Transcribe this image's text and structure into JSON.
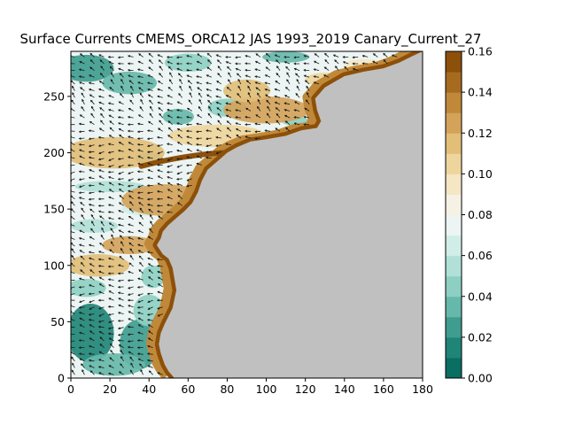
{
  "chart_data": {
    "type": "heatmap",
    "title": "Surface Currents CMEMS_ORCA12 JAS 1993_2019 Canary_Current_27",
    "xlabel": "",
    "ylabel": "",
    "xlim": [
      0,
      180
    ],
    "ylim": [
      0,
      290
    ],
    "x_ticks": [
      "0",
      "20",
      "40",
      "60",
      "80",
      "100",
      "120",
      "140",
      "160",
      "180"
    ],
    "y_ticks": [
      "0",
      "50",
      "100",
      "150",
      "200",
      "250"
    ],
    "colorbar": {
      "range": [
        0.0,
        0.16
      ],
      "ticks": [
        "0.00",
        "0.02",
        "0.04",
        "0.06",
        "0.08",
        "0.10",
        "0.12",
        "0.14",
        "0.16"
      ],
      "levels": 16,
      "colormap": "BrBG_r",
      "colors": [
        "#0b6e62",
        "#1f8577",
        "#3e9d8f",
        "#66b8aa",
        "#8dd0c3",
        "#b1e0d8",
        "#d1ede8",
        "#ecf5f3",
        "#f5f1e4",
        "#f5e6c4",
        "#eed59c",
        "#e2be78",
        "#d4a35a",
        "#c08939",
        "#a66b1f",
        "#8d500a"
      ]
    },
    "land_color": "#c0c0c0",
    "coastline": [
      [
        180,
        290
      ],
      [
        175,
        286
      ],
      [
        168,
        280
      ],
      [
        160,
        275
      ],
      [
        150,
        272
      ],
      [
        140,
        268
      ],
      [
        130,
        258
      ],
      [
        125,
        248
      ],
      [
        126,
        238
      ],
      [
        128,
        228
      ],
      [
        126,
        222
      ],
      [
        118,
        220
      ],
      [
        110,
        215
      ],
      [
        100,
        212
      ],
      [
        92,
        210
      ],
      [
        85,
        205
      ],
      [
        80,
        200
      ],
      [
        76,
        194
      ],
      [
        70,
        185
      ],
      [
        67,
        175
      ],
      [
        65,
        165
      ],
      [
        62,
        155
      ],
      [
        58,
        148
      ],
      [
        54,
        142
      ],
      [
        50,
        136
      ],
      [
        47,
        130
      ],
      [
        46,
        124
      ],
      [
        44,
        118
      ],
      [
        47,
        110
      ],
      [
        50,
        106
      ],
      [
        52,
        98
      ],
      [
        53,
        88
      ],
      [
        54,
        78
      ],
      [
        53,
        70
      ],
      [
        52,
        62
      ],
      [
        50,
        55
      ],
      [
        48,
        48
      ],
      [
        46,
        40
      ],
      [
        45,
        30
      ],
      [
        46,
        22
      ],
      [
        48,
        12
      ],
      [
        50,
        6
      ],
      [
        53,
        0
      ],
      [
        180,
        0
      ]
    ],
    "fields": [
      {
        "level": 0.015,
        "x": 10,
        "y": 40,
        "rx": 12,
        "ry": 26
      },
      {
        "level": 0.02,
        "x": 35,
        "y": 30,
        "rx": 10,
        "ry": 22
      },
      {
        "level": 0.03,
        "x": 22,
        "y": 12,
        "rx": 16,
        "ry": 10
      },
      {
        "level": 0.04,
        "x": 40,
        "y": 60,
        "rx": 8,
        "ry": 14
      },
      {
        "level": 0.025,
        "x": 8,
        "y": 275,
        "rx": 14,
        "ry": 12
      },
      {
        "level": 0.03,
        "x": 30,
        "y": 262,
        "rx": 14,
        "ry": 10
      },
      {
        "level": 0.04,
        "x": 60,
        "y": 280,
        "rx": 12,
        "ry": 8
      },
      {
        "level": 0.035,
        "x": 110,
        "y": 285,
        "rx": 12,
        "ry": 5
      },
      {
        "level": 0.04,
        "x": 80,
        "y": 240,
        "rx": 10,
        "ry": 8
      },
      {
        "level": 0.03,
        "x": 55,
        "y": 232,
        "rx": 8,
        "ry": 7
      },
      {
        "level": 0.05,
        "x": 12,
        "y": 135,
        "rx": 12,
        "ry": 6
      },
      {
        "level": 0.06,
        "x": 40,
        "y": 150,
        "rx": 14,
        "ry": 6
      },
      {
        "level": 0.05,
        "x": 20,
        "y": 170,
        "rx": 18,
        "ry": 5
      },
      {
        "level": 0.045,
        "x": 42,
        "y": 90,
        "rx": 6,
        "ry": 10
      },
      {
        "level": 0.035,
        "x": 40,
        "y": 195,
        "rx": 7,
        "ry": 5
      },
      {
        "level": 0.05,
        "x": 75,
        "y": 180,
        "rx": 8,
        "ry": 4
      },
      {
        "level": 0.04,
        "x": 115,
        "y": 228,
        "rx": 7,
        "ry": 4
      },
      {
        "level": 0.045,
        "x": 8,
        "y": 80,
        "rx": 10,
        "ry": 8
      },
      {
        "level": 0.11,
        "x": 22,
        "y": 200,
        "rx": 26,
        "ry": 14
      },
      {
        "level": 0.12,
        "x": 48,
        "y": 158,
        "rx": 22,
        "ry": 14
      },
      {
        "level": 0.105,
        "x": 75,
        "y": 215,
        "rx": 25,
        "ry": 10
      },
      {
        "level": 0.12,
        "x": 100,
        "y": 238,
        "rx": 22,
        "ry": 12
      },
      {
        "level": 0.115,
        "x": 14,
        "y": 100,
        "rx": 16,
        "ry": 10
      },
      {
        "level": 0.12,
        "x": 30,
        "y": 118,
        "rx": 14,
        "ry": 8
      },
      {
        "level": 0.11,
        "x": 90,
        "y": 255,
        "rx": 12,
        "ry": 10
      },
      {
        "level": 0.1,
        "x": 130,
        "y": 265,
        "rx": 10,
        "ry": 6
      },
      {
        "level": 0.09,
        "x": 150,
        "y": 278,
        "rx": 10,
        "ry": 5
      },
      {
        "level": 0.105,
        "x": 60,
        "y": 128,
        "rx": 8,
        "ry": 6
      }
    ],
    "upwelling_band": {
      "offset": 7,
      "level": 0.16
    },
    "cape_filament": {
      "x": [
        36,
        105
      ],
      "y": [
        188,
        200
      ],
      "level": 0.15
    },
    "vector_grid": {
      "dx": 5,
      "dy": 6
    }
  }
}
